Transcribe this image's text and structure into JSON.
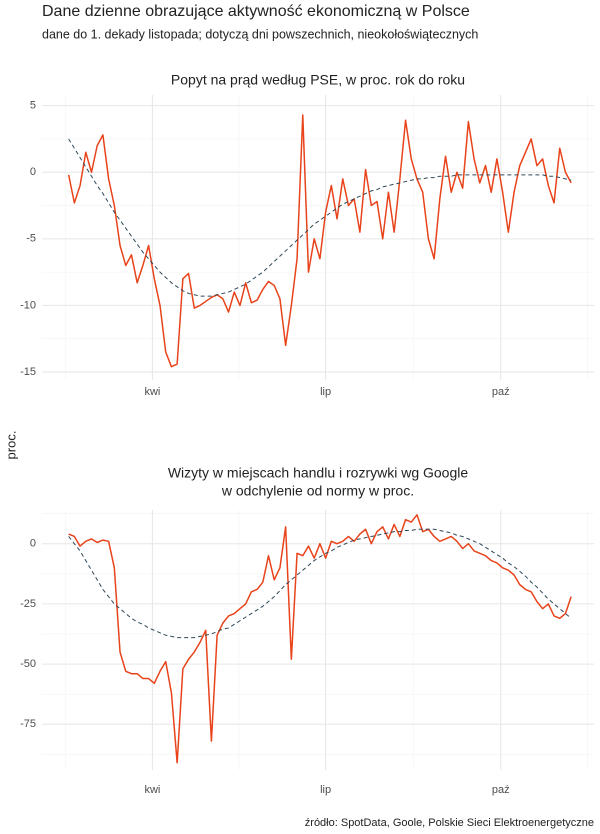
{
  "title": "Dane dzienne obrazujące aktywność ekonomiczną w Polsce",
  "subtitle": "dane do 1. dekady listopada; dotyczą dni powszechnich, nieokołoświątecznych",
  "y_label": "proc.",
  "source": "źródło: SpotData, Goole, Polskie Sieci Elektroenergetyczne",
  "chart_data": [
    {
      "type": "line",
      "title": [
        "Popyt na prąd według PSE, w proc. rok do roku"
      ],
      "x": [
        47,
        50,
        53,
        56,
        59,
        62,
        65,
        68,
        71,
        74,
        77,
        80,
        83,
        86,
        89,
        92,
        95,
        98,
        101,
        104,
        107,
        110,
        113,
        116,
        119,
        122,
        125,
        128,
        131,
        134,
        137,
        140,
        143,
        146,
        149,
        152,
        155,
        158,
        161,
        164,
        167,
        170,
        173,
        176,
        179,
        182,
        185,
        188,
        191,
        194,
        197,
        200,
        203,
        206,
        209,
        212,
        215,
        218,
        221,
        224,
        227,
        230,
        233,
        236,
        239,
        242,
        245,
        248,
        251,
        254,
        257,
        260,
        263,
        266,
        269,
        272,
        275,
        278,
        281,
        284,
        287,
        290,
        293,
        296,
        299,
        302,
        305,
        308,
        311
      ],
      "xlim": [
        33,
        323
      ],
      "xticks": [
        {
          "value": 91,
          "label": "kwi"
        },
        {
          "value": 182,
          "label": "lip"
        },
        {
          "value": 274,
          "label": "paź"
        }
      ],
      "ylim": [
        -15.6,
        5.8
      ],
      "yticks": [
        -15,
        -10,
        -5,
        0,
        5
      ],
      "grid": true,
      "series": [
        {
          "color": "#e8431a",
          "dash": "solid",
          "values": [
            -0.2,
            -2.3,
            -1,
            1.5,
            0,
            2,
            2.8,
            -0.5,
            -2.5,
            -5.5,
            -7,
            -6.2,
            -8.3,
            -7,
            -5.5,
            -8,
            -10,
            -13.5,
            -14.6,
            -14.4,
            -8,
            -7.6,
            -10.2,
            -10,
            -9.7,
            -9.4,
            -9.2,
            -9.5,
            -10.5,
            -9,
            -10,
            -8.3,
            -9.8,
            -9.6,
            -8.8,
            -8.2,
            -8.5,
            -9.5,
            -13,
            -10,
            -6.5,
            4.3,
            -7.5,
            -5,
            -6.5,
            -3,
            -1,
            -3.5,
            -0.5,
            -2.5,
            -2,
            -4.5,
            0.2,
            -2.5,
            -2.2,
            -5,
            -1.5,
            -4.5,
            -0.5,
            3.9,
            1,
            -0.5,
            -1.5,
            -5,
            -6.5,
            -2,
            1.2,
            -1.5,
            0,
            -1.2,
            3.8,
            1,
            -0.8,
            0.5,
            -1.5,
            1,
            -1.5,
            -4.5,
            -1.5,
            0.5,
            1.5,
            2.5,
            0.5,
            1,
            -1,
            -2.3,
            1.8,
            0,
            -0.8
          ]
        },
        {
          "color": "#2f4858",
          "dash": "dashed",
          "values": [
            2.5,
            1.8,
            1.1,
            0.4,
            -0.3,
            -1,
            -1.6,
            -2.3,
            -3,
            -3.6,
            -4.2,
            -4.8,
            -5.4,
            -6,
            -6.5,
            -7,
            -7.5,
            -7.9,
            -8.3,
            -8.6,
            -8.9,
            -9.1,
            -9.2,
            -9.3,
            -9.3,
            -9.3,
            -9.2,
            -9.1,
            -9,
            -8.8,
            -8.6,
            -8.4,
            -8.1,
            -7.8,
            -7.5,
            -7.1,
            -6.7,
            -6.3,
            -5.9,
            -5.5,
            -5.1,
            -4.7,
            -4.3,
            -3.9,
            -3.6,
            -3.3,
            -3,
            -2.7,
            -2.4,
            -2.2,
            -2,
            -1.8,
            -1.6,
            -1.4,
            -1.3,
            -1.1,
            -1,
            -0.9,
            -0.8,
            -0.7,
            -0.6,
            -0.5,
            -0.5,
            -0.4,
            -0.4,
            -0.3,
            -0.3,
            -0.3,
            -0.2,
            -0.2,
            -0.2,
            -0.2,
            -0.2,
            -0.2,
            -0.2,
            -0.2,
            -0.2,
            -0.2,
            -0.2,
            -0.2,
            -0.2,
            -0.2,
            -0.2,
            -0.2,
            -0.3,
            -0.3,
            -0.4,
            -0.5,
            -0.6
          ]
        }
      ]
    },
    {
      "type": "line",
      "title": [
        "Wizyty w miejscach handlu i rozrywki wg Google",
        "w odchylenie od normy w proc."
      ],
      "x": [
        47,
        50,
        53,
        56,
        59,
        62,
        65,
        68,
        71,
        74,
        77,
        80,
        83,
        86,
        89,
        92,
        95,
        98,
        101,
        104,
        107,
        110,
        113,
        116,
        119,
        122,
        125,
        128,
        131,
        134,
        137,
        140,
        143,
        146,
        149,
        152,
        155,
        158,
        161,
        164,
        167,
        170,
        173,
        176,
        179,
        182,
        185,
        188,
        191,
        194,
        197,
        200,
        203,
        206,
        209,
        212,
        215,
        218,
        221,
        224,
        227,
        230,
        233,
        236,
        239,
        242,
        245,
        248,
        251,
        254,
        257,
        260,
        263,
        266,
        269,
        272,
        275,
        278,
        281,
        284,
        287,
        290,
        293,
        296,
        299,
        302,
        305,
        308,
        311
      ],
      "xlim": [
        33,
        323
      ],
      "xticks": [
        {
          "value": 91,
          "label": "kwi"
        },
        {
          "value": 182,
          "label": "lip"
        },
        {
          "value": 274,
          "label": "paź"
        }
      ],
      "ylim": [
        -94,
        14
      ],
      "yticks": [
        -75,
        -50,
        -25,
        0
      ],
      "grid": true,
      "series": [
        {
          "color": "#e8431a",
          "dash": "solid",
          "values": [
            4,
            3,
            -1,
            1,
            2,
            0.5,
            1.5,
            1,
            -10,
            -45,
            -53,
            -54,
            -54,
            -56,
            -56,
            -58,
            -53,
            -49,
            -62,
            -91,
            -52,
            -48,
            -45,
            -41,
            -36,
            -82,
            -38,
            -33,
            -30,
            -29,
            -27,
            -25,
            -20,
            -19,
            -16,
            -5,
            -15,
            -10,
            7,
            -48,
            -4,
            -5,
            -1,
            -6,
            0,
            -6,
            1,
            0,
            1,
            3,
            1,
            4,
            6,
            0,
            5,
            7,
            2,
            8,
            3,
            10,
            9,
            12,
            5,
            6,
            3,
            1,
            2,
            3,
            1,
            -2,
            0,
            -3,
            -4,
            -5,
            -7,
            -8,
            -10,
            -11,
            -13,
            -17,
            -19,
            -20,
            -24,
            -27,
            -25,
            -30,
            -31,
            -29,
            -22
          ]
        },
        {
          "color": "#2f4858",
          "dash": "dashed",
          "values": [
            3,
            0,
            -3,
            -7,
            -11,
            -15,
            -19,
            -22,
            -25,
            -27,
            -29,
            -31,
            -32.5,
            -33.5,
            -35,
            -36,
            -37,
            -38,
            -38.5,
            -39,
            -39,
            -39,
            -39,
            -38.5,
            -38,
            -37.5,
            -36.5,
            -35.5,
            -35,
            -33.5,
            -32,
            -30.5,
            -29,
            -27.5,
            -26,
            -24,
            -22,
            -19.5,
            -17,
            -15,
            -13,
            -11,
            -9,
            -7,
            -5.5,
            -4,
            -3,
            -1.5,
            -0.5,
            0.5,
            1.5,
            2,
            2.5,
            3,
            3.5,
            4,
            4.5,
            5,
            5,
            5.5,
            5.5,
            6,
            6,
            6,
            6,
            5.5,
            5,
            4.5,
            3.5,
            3,
            2,
            1,
            0,
            -1.5,
            -3,
            -4.5,
            -6,
            -8,
            -9.5,
            -11.5,
            -13.5,
            -16,
            -18,
            -20.5,
            -23,
            -25,
            -27,
            -29,
            -31
          ]
        }
      ]
    }
  ]
}
